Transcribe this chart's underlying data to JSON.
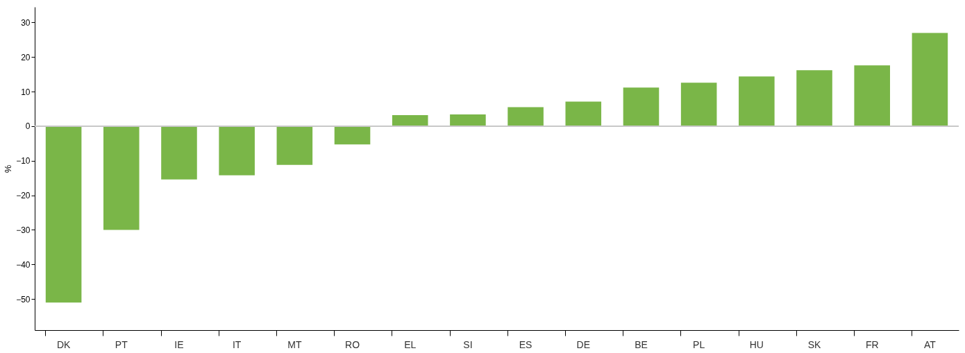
{
  "chart_data": {
    "type": "bar",
    "ylabel": "%",
    "categories": [
      "DK",
      "PT",
      "IE",
      "IT",
      "MT",
      "RO",
      "EL",
      "SI",
      "ES",
      "DE",
      "BE",
      "PL",
      "HU",
      "SK",
      "FR",
      "AT"
    ],
    "values": [
      -51,
      -30,
      -15.4,
      -14.2,
      -11.2,
      -5.3,
      3.2,
      3.4,
      5.5,
      7.1,
      11.2,
      12.6,
      14.4,
      16.2,
      17.6,
      27
    ],
    "color": "#7ab648",
    "ylim": [
      -59,
      34.5
    ],
    "yticks": [
      -50,
      -40,
      -30,
      -20,
      -10,
      0,
      10,
      20,
      30
    ],
    "ref_lines": [
      {
        "axis": "y",
        "value": 0,
        "color": "#c8c8c8"
      }
    ],
    "grid": false
  }
}
